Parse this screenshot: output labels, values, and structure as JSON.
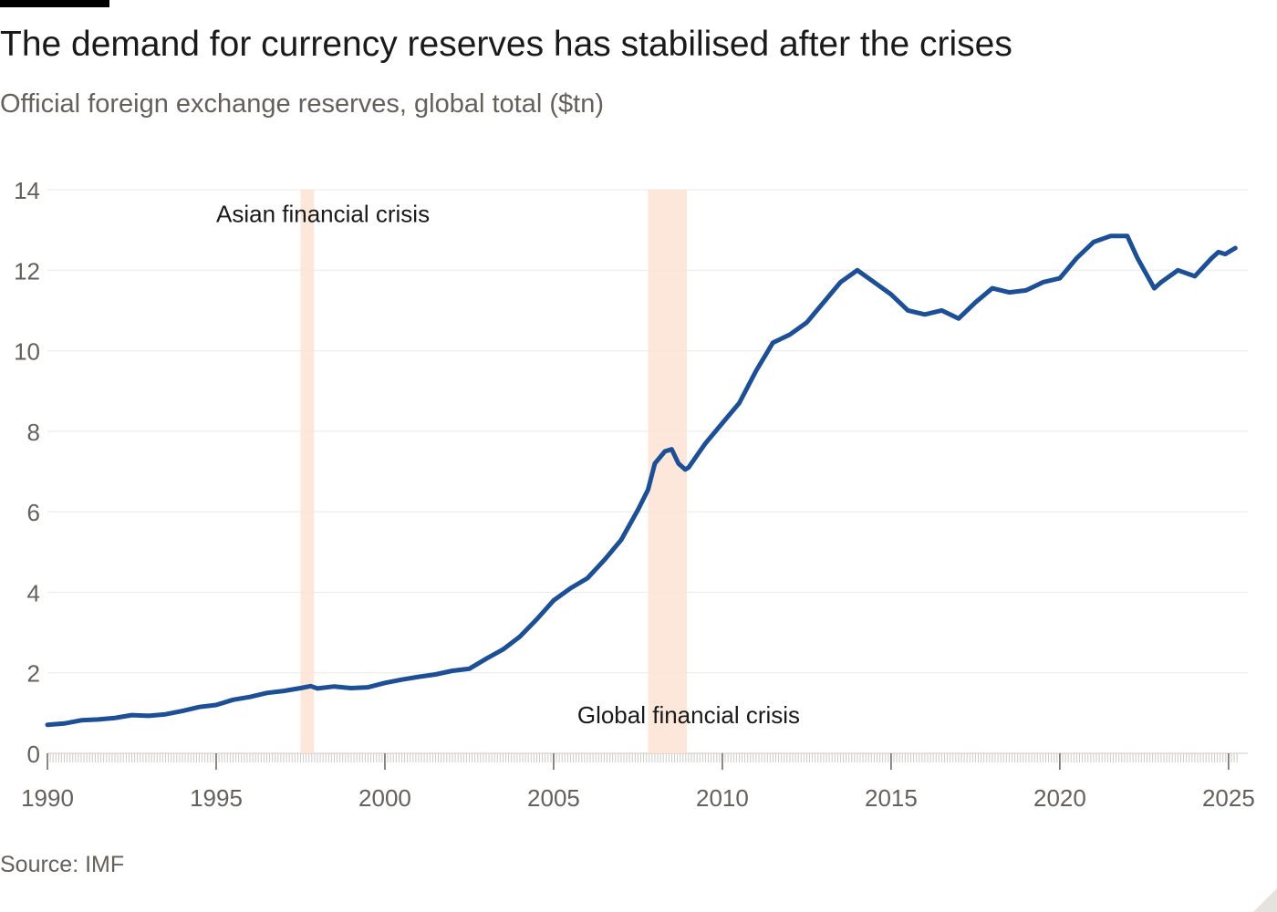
{
  "header": {
    "title": "The demand for currency reserves has stabilised after the crises",
    "subtitle": "Official foreign exchange reserves, global total ($tn)"
  },
  "footer": {
    "source": "Source: IMF"
  },
  "colors": {
    "line": "#1c4f95",
    "shade": "#fde3d3",
    "grid": "#ece8e4",
    "axis_text": "#66605c",
    "title_text": "#1a1a1a"
  },
  "chart_data": {
    "type": "line",
    "title": "The demand for currency reserves has stabilised after the crises",
    "subtitle": "Official foreign exchange reserves, global total ($tn)",
    "xlabel": "",
    "ylabel": "",
    "xlim": [
      1990,
      2025.3
    ],
    "ylim": [
      0,
      14
    ],
    "grid": true,
    "x_ticks": [
      1990,
      1995,
      2000,
      2005,
      2010,
      2015,
      2020,
      2025
    ],
    "x_tick_labels": [
      "1990",
      "1995",
      "2000",
      "2005",
      "2010",
      "2015",
      "2020",
      "2025"
    ],
    "y_ticks": [
      0,
      2,
      4,
      6,
      8,
      10,
      12,
      14
    ],
    "y_tick_labels": [
      "0",
      "2",
      "4",
      "6",
      "8",
      "10",
      "12",
      "14"
    ],
    "shaded_periods": [
      {
        "label": "Asian financial crisis",
        "start": 1997.5,
        "end": 1997.9
      },
      {
        "label": "Global financial crisis",
        "start": 2007.8,
        "end": 2008.95
      }
    ],
    "annotations": [
      {
        "text": "Asian financial crisis",
        "x": 1995.0,
        "y": 13.4
      },
      {
        "text": "Global financial crisis",
        "x": 2005.7,
        "y": 0.95
      }
    ],
    "series": [
      {
        "name": "",
        "x": [
          1990.0,
          1990.5,
          1991.0,
          1991.5,
          1992.0,
          1992.5,
          1993.0,
          1993.5,
          1994.0,
          1994.5,
          1995.0,
          1995.5,
          1996.0,
          1996.5,
          1997.0,
          1997.5,
          1997.8,
          1998.0,
          1998.5,
          1999.0,
          1999.5,
          2000.0,
          2000.5,
          2001.0,
          2001.5,
          2002.0,
          2002.5,
          2003.0,
          2003.5,
          2004.0,
          2004.5,
          2005.0,
          2005.5,
          2006.0,
          2006.5,
          2007.0,
          2007.5,
          2007.8,
          2008.0,
          2008.3,
          2008.5,
          2008.7,
          2008.9,
          2009.0,
          2009.5,
          2010.0,
          2010.5,
          2011.0,
          2011.5,
          2012.0,
          2012.5,
          2013.0,
          2013.5,
          2014.0,
          2014.5,
          2015.0,
          2015.5,
          2016.0,
          2016.5,
          2017.0,
          2017.5,
          2018.0,
          2018.5,
          2019.0,
          2019.5,
          2020.0,
          2020.5,
          2021.0,
          2021.5,
          2022.0,
          2022.3,
          2022.5,
          2022.8,
          2023.0,
          2023.5,
          2024.0,
          2024.5,
          2024.7,
          2024.9,
          2025.2
        ],
        "values": [
          0.71,
          0.74,
          0.82,
          0.84,
          0.88,
          0.95,
          0.93,
          0.97,
          1.05,
          1.15,
          1.2,
          1.33,
          1.4,
          1.5,
          1.55,
          1.62,
          1.67,
          1.61,
          1.66,
          1.62,
          1.64,
          1.75,
          1.83,
          1.9,
          1.96,
          2.05,
          2.1,
          2.35,
          2.58,
          2.9,
          3.33,
          3.8,
          4.1,
          4.35,
          4.8,
          5.3,
          6.05,
          6.55,
          7.2,
          7.5,
          7.55,
          7.2,
          7.05,
          7.1,
          7.7,
          8.2,
          8.7,
          9.5,
          10.2,
          10.4,
          10.7,
          11.2,
          11.7,
          12.0,
          11.7,
          11.4,
          11.0,
          10.9,
          11.0,
          10.8,
          11.2,
          11.55,
          11.45,
          11.5,
          11.7,
          11.8,
          12.3,
          12.7,
          12.85,
          12.85,
          12.3,
          12.0,
          11.55,
          11.7,
          12.0,
          11.85,
          12.3,
          12.45,
          12.4,
          12.55
        ]
      }
    ]
  }
}
